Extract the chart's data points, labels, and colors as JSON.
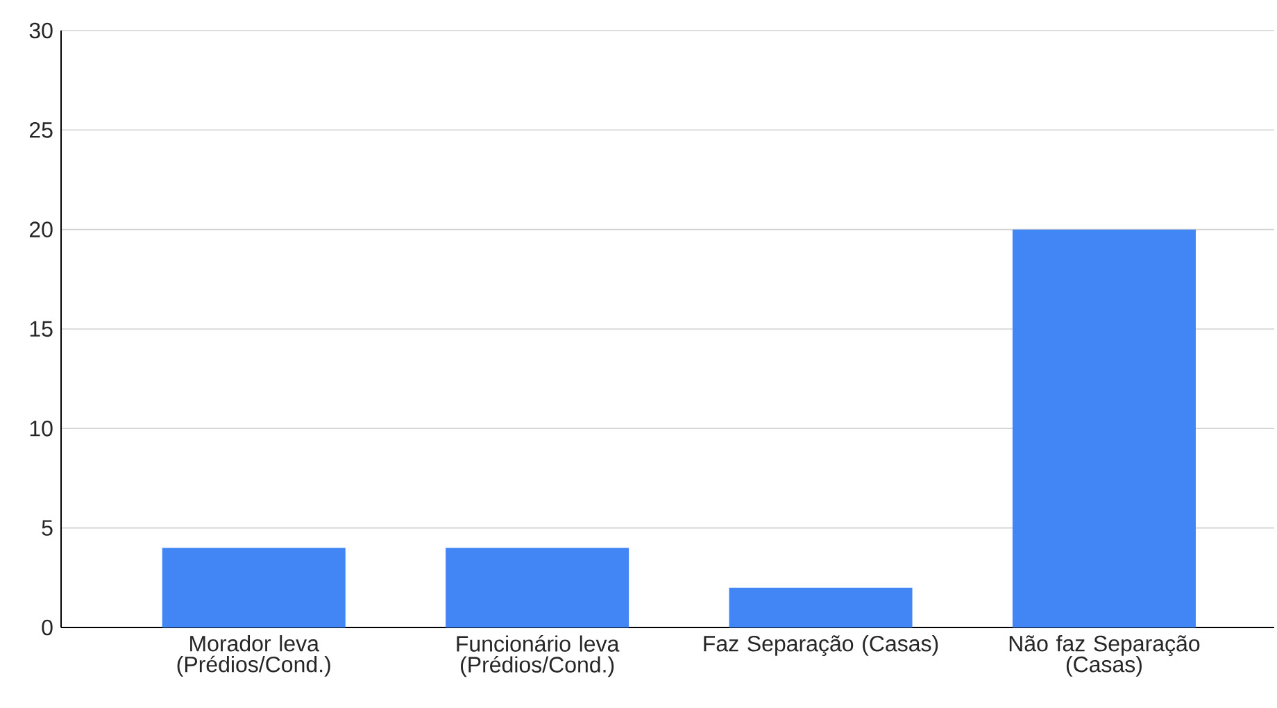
{
  "chart_data": {
    "type": "bar",
    "categories": [
      "Morador leva (Prédios/Cond.)",
      "Funcionário leva (Prédios/Cond.)",
      "Faz Separação (Casas)",
      "Não faz Separação (Casas)"
    ],
    "values": [
      4,
      4,
      2,
      20
    ],
    "color": "#4285f4",
    "ylim": [
      0,
      30
    ],
    "yticks": [
      0,
      5,
      10,
      15,
      20,
      25,
      30
    ],
    "grid": "y"
  }
}
